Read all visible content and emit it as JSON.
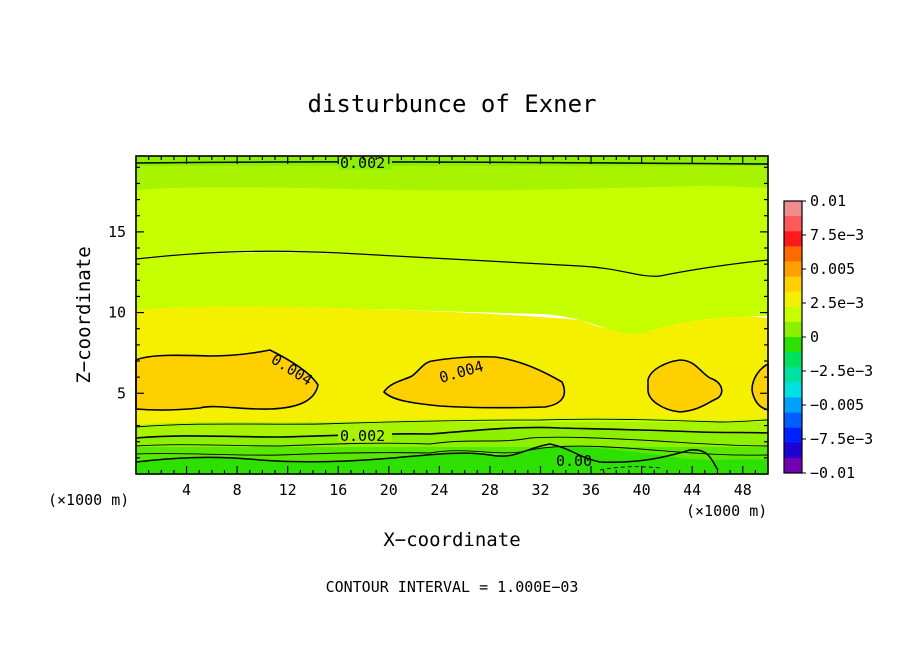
{
  "chart_data": {
    "type": "heatmap",
    "title": "disturbunce of Exner",
    "xlabel": "X−coordinate",
    "ylabel": "Z−coordinate",
    "x_unit_left": "(×1000 m)",
    "x_unit_right": "(×1000 m)",
    "xlim": [
      0,
      50
    ],
    "ylim": [
      0,
      19.7
    ],
    "x_ticks": [
      4,
      8,
      12,
      16,
      20,
      24,
      28,
      32,
      36,
      40,
      44,
      48
    ],
    "y_ticks": [
      5,
      10,
      15
    ],
    "contour_labels": [
      {
        "text": "0.002",
        "x": 20,
        "z": 19.5
      },
      {
        "text": "0.004",
        "x": 13,
        "z": 6.5
      },
      {
        "text": "0.004",
        "x": 26,
        "z": 6.3
      },
      {
        "text": "0.002",
        "x": 18.5,
        "z": 2.3
      },
      {
        "text": "0.00",
        "x": 34,
        "z": 0.8
      }
    ],
    "colorbar": {
      "labels": [
        "0.01",
        "7.5e−3",
        "0.005",
        "2.5e−3",
        "0",
        "−2.5e−3",
        "−0.005",
        "−7.5e−3",
        "−0.01"
      ],
      "levels": [
        0.01,
        0.0075,
        0.005,
        0.0025,
        0,
        -0.0025,
        -0.005,
        -0.0075,
        -0.01
      ],
      "colors": [
        "#f08c8c",
        "#ff5a5a",
        "#ff1a1a",
        "#ff6a00",
        "#ffa000",
        "#ffd000",
        "#f4f000",
        "#c6ff00",
        "#8cf000",
        "#2ee000",
        "#00e060",
        "#00e0a0",
        "#00e0e0",
        "#00a0ff",
        "#0060ff",
        "#0020ff",
        "#2000d0",
        "#7000b0"
      ]
    },
    "footer": "CONTOUR INTERVAL = 1.000E−03"
  }
}
